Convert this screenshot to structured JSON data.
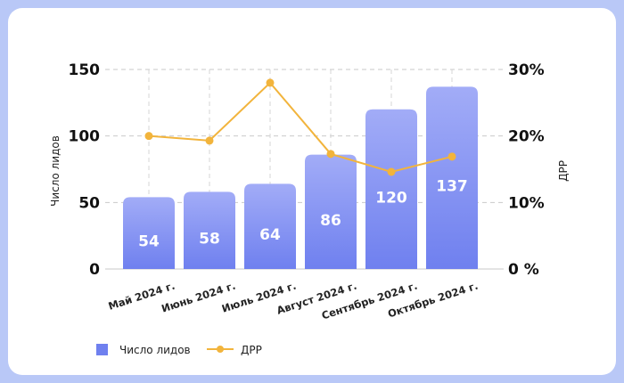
{
  "chart_data": {
    "type": "bar",
    "categories": [
      "Май 2024 г.",
      "Июнь 2024 г.",
      "Июль 2024 г.",
      "Август 2024 г.",
      "Сентябрь 2024 г.",
      "Октябрь 2024 г."
    ],
    "series": [
      {
        "name": "Число лидов",
        "type": "bar",
        "axis": "left",
        "values": [
          54,
          58,
          64,
          86,
          120,
          137
        ],
        "color": "#7a89f0"
      },
      {
        "name": "ДРР",
        "type": "line",
        "axis": "right",
        "values": [
          20,
          19.3,
          28,
          17.3,
          14.6,
          16.9
        ],
        "color": "#f2b43c"
      }
    ],
    "ylabel": "Число лидов",
    "y2label": "ДРР",
    "ylim": [
      0,
      150
    ],
    "y2lim": [
      0,
      30
    ],
    "yticks": [
      "0",
      "50",
      "100",
      "150"
    ],
    "y2ticks": [
      "0 %",
      "10%",
      "20%",
      "30%"
    ],
    "legend_position": "bottom-left",
    "grid": true
  }
}
